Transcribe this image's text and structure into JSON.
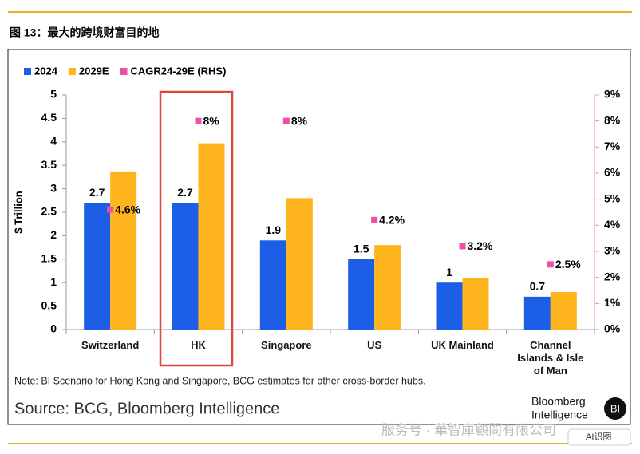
{
  "chart_data": {
    "type": "bar",
    "title": "图 13：最大的跨境财富目的地",
    "y_label": "$ Trillion",
    "categories": [
      "Switzerland",
      "HK",
      "Singapore",
      "US",
      "UK Mainland",
      "Channel Islands & Isle of Man"
    ],
    "series": [
      {
        "name": "2024",
        "type": "bar",
        "color": "#1c5fe6",
        "values": [
          2.7,
          2.7,
          1.9,
          1.5,
          1,
          0.7
        ]
      },
      {
        "name": "2029E",
        "type": "bar",
        "color": "#ffb51e",
        "values": [
          3.37,
          3.97,
          2.8,
          1.8,
          1.1,
          0.8
        ]
      },
      {
        "name": "CAGR24-29E (RHS)",
        "type": "scatter",
        "axis": "y2",
        "color": "#f04ea8",
        "values": [
          4.6,
          8,
          8,
          4.2,
          3.2,
          2.5
        ],
        "value_labels": [
          "4.6%",
          "8%",
          "8%",
          "4.2%",
          "3.2%",
          "2.5%"
        ]
      }
    ],
    "ylim": [
      0,
      5
    ],
    "yticks": [
      0,
      0.5,
      1,
      1.5,
      2,
      2.5,
      3,
      3.5,
      4,
      4.5,
      5
    ],
    "y2lim": [
      0,
      9
    ],
    "y2ticks": [
      {
        "value": 0,
        "label": "0%"
      },
      {
        "value": 1,
        "label": "1%"
      },
      {
        "value": 2,
        "label": "2%"
      },
      {
        "value": 3,
        "label": "3%"
      },
      {
        "value": 4,
        "label": "4%"
      },
      {
        "value": 5,
        "label": "5%"
      },
      {
        "value": 6,
        "label": "6%"
      },
      {
        "value": 7,
        "label": "7%"
      },
      {
        "value": 8,
        "label": "8%"
      },
      {
        "value": 9,
        "label": "9%"
      }
    ],
    "note": "Note: BI Scenario for Hong Kong and Singapore, BCG estimates for other cross-border hubs.",
    "source": "Source: BCG, Bloomberg Intelligence",
    "logo": {
      "line1": "Bloomberg",
      "line2": "Intelligence",
      "badge": "BI"
    },
    "watermark": "服务号 · 華智庫顧問有限公司",
    "ai_button": "AI识图"
  }
}
